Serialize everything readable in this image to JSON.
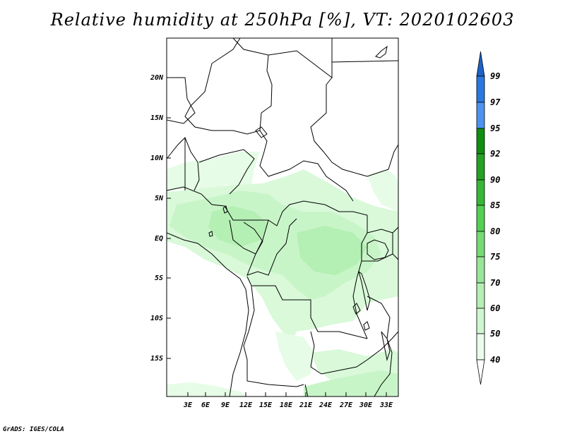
{
  "title": "Relative humidity at 250hPa [%], VT: 2020102603",
  "credit": "GrADS: IGES/COLA",
  "map": {
    "lat_labels": [
      "20N",
      "15N",
      "10N",
      "5N",
      "EQ",
      "5S",
      "10S",
      "15S"
    ],
    "lon_labels": [
      "3E",
      "6E",
      "9E",
      "12E",
      "15E",
      "18E",
      "21E",
      "24E",
      "27E",
      "30E",
      "33E"
    ],
    "fill_colors": {
      "40": "#e6fce6",
      "50": "#c8f5c8",
      "60": "#a6eca6",
      "70": "#8ee08e",
      "75": "#6fd36f"
    }
  },
  "colorbar": {
    "labels": [
      "99",
      "97",
      "95",
      "92",
      "90",
      "85",
      "80",
      "75",
      "70",
      "60",
      "50",
      "40"
    ],
    "colors": [
      "#1c62c8",
      "#2979e0",
      "#4b94ee",
      "#0f8f0f",
      "#23a223",
      "#36b836",
      "#52d052",
      "#74dc74",
      "#98e698",
      "#b4efb4",
      "#cff7cf",
      "#eafcea"
    ]
  }
}
